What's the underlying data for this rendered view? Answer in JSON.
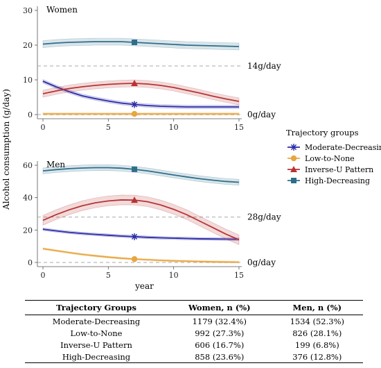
{
  "chart_data": [
    {
      "type": "line",
      "panel_title": "Women",
      "xlim": [
        0,
        15
      ],
      "ylim": [
        0,
        30
      ],
      "x_ticks": [
        0,
        5,
        10,
        15
      ],
      "y_ticks": [
        0,
        10,
        20,
        30
      ],
      "x": [
        0,
        1,
        2,
        3,
        4,
        5,
        6,
        7,
        8,
        9,
        10,
        11,
        12,
        13,
        14,
        15
      ],
      "marker_x": 7,
      "reference_lines": [
        {
          "value": 14,
          "label": "14g/day"
        },
        {
          "value": 0,
          "label": "0g/day"
        }
      ],
      "series": [
        {
          "name": "Moderate-Decreasing",
          "color": "#2b2ba8",
          "marker": "asterisk",
          "values": [
            9.6,
            8.0,
            6.6,
            5.4,
            4.6,
            3.9,
            3.3,
            2.9,
            2.6,
            2.4,
            2.3,
            2.2,
            2.2,
            2.2,
            2.2,
            2.2
          ]
        },
        {
          "name": "Low-to-None",
          "color": "#e8a640",
          "marker": "circle",
          "values": [
            0.2,
            0.2,
            0.2,
            0.2,
            0.2,
            0.2,
            0.2,
            0.2,
            0.2,
            0.2,
            0.2,
            0.2,
            0.2,
            0.2,
            0.2,
            0.2
          ]
        },
        {
          "name": "Inverse-U Pattern",
          "color": "#b83333",
          "marker": "triangle",
          "values": [
            6.0,
            6.8,
            7.5,
            8.0,
            8.4,
            8.7,
            8.9,
            9.0,
            8.8,
            8.4,
            7.8,
            7.0,
            6.2,
            5.3,
            4.5,
            3.8
          ]
        },
        {
          "name": "High-Decreasing",
          "color": "#2e6e8a",
          "marker": "square",
          "values": [
            20.3,
            20.6,
            20.8,
            20.9,
            21.0,
            21.0,
            21.0,
            20.8,
            20.6,
            20.4,
            20.2,
            20.0,
            19.9,
            19.8,
            19.7,
            19.6
          ]
        }
      ]
    },
    {
      "type": "line",
      "panel_title": "Men",
      "xlabel": "year",
      "xlim": [
        0,
        15
      ],
      "ylim": [
        0,
        60
      ],
      "x_ticks": [
        0,
        5,
        10,
        15
      ],
      "y_ticks": [
        0,
        20,
        40,
        60
      ],
      "x": [
        0,
        1,
        2,
        3,
        4,
        5,
        6,
        7,
        8,
        9,
        10,
        11,
        12,
        13,
        14,
        15
      ],
      "marker_x": 7,
      "reference_lines": [
        {
          "value": 28,
          "label": "28g/day"
        },
        {
          "value": 0,
          "label": "0g/day"
        }
      ],
      "series": [
        {
          "name": "Moderate-Decreasing",
          "color": "#2b2ba8",
          "marker": "asterisk",
          "values": [
            20.5,
            19.5,
            18.6,
            17.9,
            17.3,
            16.8,
            16.3,
            15.9,
            15.5,
            15.2,
            15.0,
            14.8,
            14.6,
            14.5,
            14.4,
            14.3
          ]
        },
        {
          "name": "Low-to-None",
          "color": "#e8a640",
          "marker": "circle",
          "values": [
            8.5,
            7.3,
            6.1,
            5.0,
            4.1,
            3.3,
            2.6,
            2.1,
            1.7,
            1.3,
            1.0,
            0.8,
            0.6,
            0.4,
            0.3,
            0.2
          ]
        },
        {
          "name": "Inverse-U Pattern",
          "color": "#b83333",
          "marker": "triangle",
          "values": [
            26.0,
            29.5,
            32.5,
            35.0,
            36.8,
            38.0,
            38.6,
            38.5,
            37.5,
            35.5,
            32.8,
            29.5,
            25.5,
            21.5,
            17.5,
            14.0
          ]
        },
        {
          "name": "High-Decreasing",
          "color": "#2e6e8a",
          "marker": "square",
          "values": [
            56.5,
            57.3,
            57.9,
            58.3,
            58.5,
            58.5,
            58.2,
            57.5,
            56.5,
            55.3,
            54.0,
            52.8,
            51.7,
            50.8,
            50.0,
            49.5
          ]
        }
      ]
    }
  ],
  "shared": {
    "ylabel": "Alcohol consumption (g/day)",
    "legend_title": "Trajectory groups",
    "legend": [
      "Moderate-Decreasing",
      "Low-to-None",
      "Inverse-U Pattern",
      "High-Decreasing"
    ]
  },
  "table": {
    "headers": [
      "Trajectory Groups",
      "Women, n (%)",
      "Men, n (%)"
    ],
    "rows": [
      [
        "Moderate-Decreasing",
        "1179 (32.4%)",
        "1534 (52.3%)"
      ],
      [
        "Low-to-None",
        "992 (27.3%)",
        "826 (28.1%)"
      ],
      [
        "Inverse-U Pattern",
        "606 (16.7%)",
        "199 (6.8%)"
      ],
      [
        "High-Decreasing",
        "858 (23.6%)",
        "376 (12.8%)"
      ]
    ]
  }
}
